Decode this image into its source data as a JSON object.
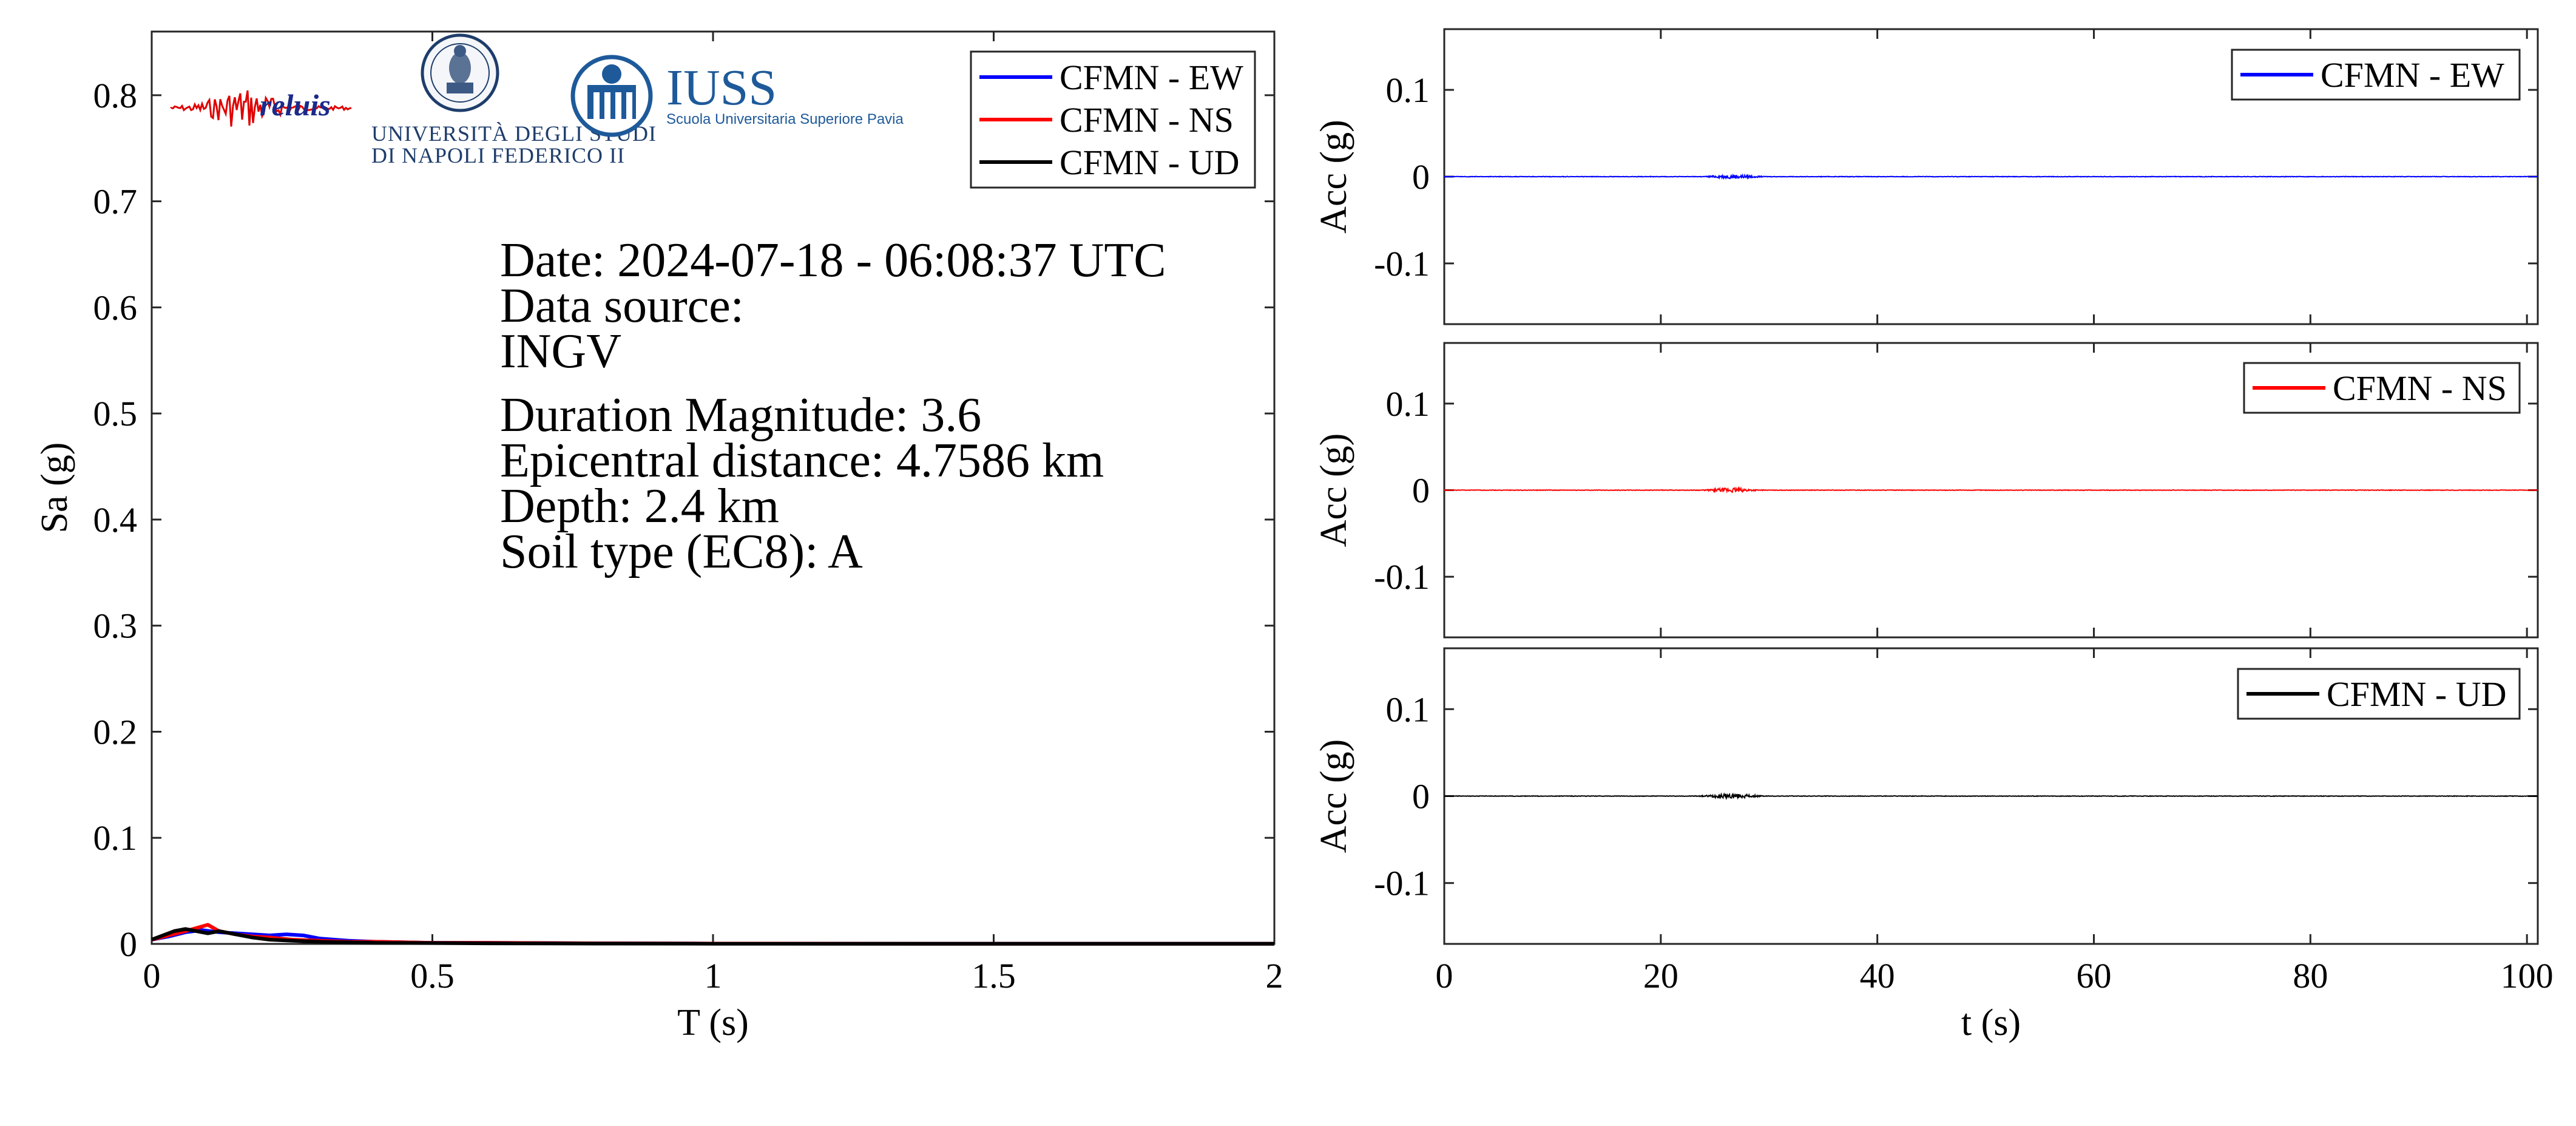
{
  "colors": {
    "EW": "#0000ff",
    "NS": "#ff0000",
    "UD": "#000000",
    "logo_blue": "#1e5a9a",
    "reluis_red": "#e00000",
    "reluis_blue": "#1a2a8a"
  },
  "logos": {
    "reluis": "reluis",
    "unina_line1": "UNIVERSITÀ DEGLI STUDI",
    "unina_line2": "DI NAPOLI FEDERICO II",
    "iuss_name": "IUSS",
    "iuss_sub": "Scuola Universitaria Superiore Pavia"
  },
  "info": {
    "date": "Date: 2024-07-18 - 06:08:37 UTC",
    "source_label": "Data source:",
    "source": "INGV",
    "magnitude": "Duration Magnitude: 3.6",
    "distance": "Epicentral distance: 4.7586 km",
    "depth": "Depth: 2.4 km",
    "soil": "Soil type (EC8): A"
  },
  "chart_data": [
    {
      "type": "line",
      "xlabel": "T (s)",
      "ylabel": "Sa (g)",
      "xlim": [
        0,
        2
      ],
      "ylim": [
        0,
        0.86
      ],
      "xticks": [
        0,
        0.5,
        1,
        1.5,
        2
      ],
      "xtick_labels": [
        "0",
        "0.5",
        "1",
        "1.5",
        "2"
      ],
      "yticks": [
        0,
        0.1,
        0.2,
        0.3,
        0.4,
        0.5,
        0.6,
        0.7,
        0.8
      ],
      "ytick_labels": [
        "0",
        "0.1",
        "0.2",
        "0.3",
        "0.4",
        "0.5",
        "0.6",
        "0.7",
        "0.8"
      ],
      "legend": "top-right",
      "series": [
        {
          "name": "CFMN - EW",
          "key": "EW",
          "x": [
            0,
            0.03,
            0.06,
            0.09,
            0.12,
            0.15,
            0.18,
            0.21,
            0.24,
            0.27,
            0.3,
            0.35,
            0.4,
            0.5,
            0.6,
            0.8,
            1.0,
            1.5,
            2.0
          ],
          "y": [
            0.004,
            0.007,
            0.011,
            0.013,
            0.011,
            0.01,
            0.009,
            0.008,
            0.009,
            0.008,
            0.005,
            0.003,
            0.002,
            0.001,
            0.001,
            0.0005,
            0.0003,
            0.0001,
            0.0001
          ]
        },
        {
          "name": "CFMN - NS",
          "key": "NS",
          "x": [
            0,
            0.03,
            0.06,
            0.08,
            0.1,
            0.12,
            0.15,
            0.18,
            0.21,
            0.25,
            0.3,
            0.35,
            0.4,
            0.5,
            0.6,
            0.8,
            1.0,
            1.5,
            2.0
          ],
          "y": [
            0.004,
            0.008,
            0.012,
            0.015,
            0.018,
            0.012,
            0.009,
            0.007,
            0.006,
            0.004,
            0.003,
            0.002,
            0.002,
            0.001,
            0.001,
            0.0005,
            0.0003,
            0.0001,
            0.0001
          ]
        },
        {
          "name": "CFMN - UD",
          "key": "UD",
          "x": [
            0,
            0.02,
            0.04,
            0.06,
            0.08,
            0.1,
            0.12,
            0.15,
            0.18,
            0.21,
            0.25,
            0.3,
            0.35,
            0.4,
            0.5,
            0.6,
            0.8,
            1.0,
            1.5,
            2.0
          ],
          "y": [
            0.004,
            0.008,
            0.012,
            0.014,
            0.012,
            0.01,
            0.012,
            0.009,
            0.006,
            0.004,
            0.003,
            0.002,
            0.0015,
            0.001,
            0.0008,
            0.0005,
            0.0003,
            0.0002,
            0.0001,
            0.0001
          ]
        }
      ]
    },
    {
      "type": "line",
      "xlabel": "",
      "ylabel": "Acc (g)",
      "xlim": [
        0,
        101
      ],
      "ylim": [
        -0.17,
        0.17
      ],
      "yticks": [
        -0.1,
        0,
        0.1
      ],
      "ytick_labels": [
        "-0.1",
        "0",
        "0.1"
      ],
      "xticks": [
        0,
        20,
        40,
        60,
        80,
        100
      ],
      "legend": "top-right",
      "series": [
        {
          "name": "CFMN - EW",
          "key": "EW",
          "burst": [
            23.5,
            30
          ],
          "peak": 0.0025
        }
      ]
    },
    {
      "type": "line",
      "xlabel": "",
      "ylabel": "Acc (g)",
      "xlim": [
        0,
        101
      ],
      "ylim": [
        -0.17,
        0.17
      ],
      "yticks": [
        -0.1,
        0,
        0.1
      ],
      "ytick_labels": [
        "-0.1",
        "0",
        "0.1"
      ],
      "xticks": [
        0,
        20,
        40,
        60,
        80,
        100
      ],
      "legend": "top-right",
      "series": [
        {
          "name": "CFMN - NS",
          "key": "NS",
          "burst": [
            23.5,
            29.5
          ],
          "peak": 0.003
        }
      ]
    },
    {
      "type": "line",
      "xlabel": "t (s)",
      "ylabel": "Acc (g)",
      "xlim": [
        0,
        101
      ],
      "ylim": [
        -0.17,
        0.17
      ],
      "xticks": [
        0,
        20,
        40,
        60,
        80,
        100
      ],
      "xtick_labels": [
        "0",
        "20",
        "40",
        "60",
        "80",
        "100"
      ],
      "yticks": [
        -0.1,
        0,
        0.1
      ],
      "ytick_labels": [
        "-0.1",
        "0",
        "0.1"
      ],
      "legend": "top-right",
      "series": [
        {
          "name": "CFMN - UD",
          "key": "UD",
          "burst": [
            23,
            30
          ],
          "peak": 0.003
        }
      ]
    }
  ]
}
